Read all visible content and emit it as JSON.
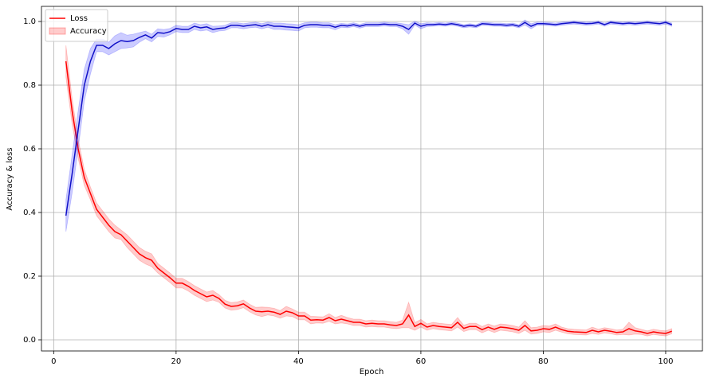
{
  "chart_data": {
    "type": "line",
    "xlabel": "Epoch",
    "ylabel": "Accuracy & loss",
    "xlim": [
      -2,
      106
    ],
    "ylim": [
      -0.035,
      1.0475
    ],
    "xticks": [
      0,
      20,
      40,
      60,
      80,
      100
    ],
    "yticks": [
      {
        "value": 0,
        "label": "0.0"
      },
      0.2,
      0.4,
      0.6,
      0.8,
      {
        "value": 1,
        "label": "1.0"
      }
    ],
    "grid": true,
    "legend": "upper left",
    "x": [
      2,
      3,
      4,
      5,
      6,
      7,
      8,
      9,
      10,
      11,
      12,
      13,
      14,
      15,
      16,
      17,
      18,
      19,
      20,
      21,
      22,
      23,
      24,
      25,
      26,
      27,
      28,
      29,
      30,
      31,
      32,
      33,
      34,
      35,
      36,
      37,
      38,
      39,
      40,
      41,
      42,
      43,
      44,
      45,
      46,
      47,
      48,
      49,
      50,
      51,
      52,
      53,
      54,
      55,
      56,
      57,
      58,
      59,
      60,
      61,
      62,
      63,
      64,
      65,
      66,
      67,
      68,
      69,
      70,
      71,
      72,
      73,
      74,
      75,
      76,
      77,
      78,
      79,
      80,
      81,
      82,
      83,
      84,
      85,
      86,
      87,
      88,
      89,
      90,
      91,
      92,
      93,
      94,
      95,
      96,
      97,
      98,
      99,
      100,
      101
    ],
    "series": [
      {
        "name": "Loss",
        "color": "#ff0000",
        "band_color": "rgba(255,0,0,0.2)",
        "legend_marker": "line",
        "legend_color": "#ff0000",
        "values": [
          0.875,
          0.72,
          0.6,
          0.51,
          0.46,
          0.41,
          0.385,
          0.36,
          0.34,
          0.33,
          0.31,
          0.29,
          0.27,
          0.258,
          0.25,
          0.225,
          0.21,
          0.195,
          0.178,
          0.178,
          0.168,
          0.155,
          0.145,
          0.135,
          0.14,
          0.13,
          0.112,
          0.105,
          0.107,
          0.113,
          0.1,
          0.09,
          0.088,
          0.09,
          0.087,
          0.08,
          0.09,
          0.085,
          0.075,
          0.075,
          0.062,
          0.063,
          0.062,
          0.07,
          0.06,
          0.065,
          0.06,
          0.055,
          0.055,
          0.05,
          0.052,
          0.05,
          0.05,
          0.047,
          0.045,
          0.05,
          0.078,
          0.042,
          0.052,
          0.04,
          0.045,
          0.042,
          0.04,
          0.038,
          0.055,
          0.036,
          0.042,
          0.042,
          0.032,
          0.04,
          0.033,
          0.04,
          0.038,
          0.035,
          0.03,
          0.045,
          0.028,
          0.03,
          0.035,
          0.033,
          0.04,
          0.032,
          0.027,
          0.025,
          0.024,
          0.023,
          0.03,
          0.025,
          0.03,
          0.027,
          0.023,
          0.025,
          0.035,
          0.028,
          0.025,
          0.02,
          0.025,
          0.022,
          0.02,
          0.027
        ],
        "band": [
          0.05,
          0.04,
          0.03,
          0.025,
          0.02,
          0.02,
          0.02,
          0.02,
          0.02,
          0.015,
          0.02,
          0.02,
          0.02,
          0.02,
          0.02,
          0.015,
          0.015,
          0.015,
          0.015,
          0.015,
          0.015,
          0.015,
          0.015,
          0.015,
          0.015,
          0.012,
          0.012,
          0.012,
          0.012,
          0.012,
          0.012,
          0.012,
          0.015,
          0.012,
          0.012,
          0.012,
          0.015,
          0.012,
          0.012,
          0.012,
          0.012,
          0.01,
          0.01,
          0.012,
          0.01,
          0.012,
          0.01,
          0.01,
          0.01,
          0.01,
          0.01,
          0.01,
          0.01,
          0.01,
          0.01,
          0.012,
          0.04,
          0.012,
          0.012,
          0.01,
          0.01,
          0.01,
          0.01,
          0.01,
          0.015,
          0.01,
          0.01,
          0.01,
          0.01,
          0.01,
          0.01,
          0.01,
          0.01,
          0.01,
          0.01,
          0.015,
          0.01,
          0.01,
          0.01,
          0.01,
          0.01,
          0.008,
          0.008,
          0.008,
          0.008,
          0.008,
          0.01,
          0.008,
          0.008,
          0.008,
          0.008,
          0.008,
          0.02,
          0.01,
          0.008,
          0.008,
          0.008,
          0.008,
          0.008,
          0.008
        ]
      },
      {
        "name": "Accuracy",
        "color": "#1010c8",
        "band_color": "rgba(0,0,255,0.2)",
        "legend_marker": "patch",
        "legend_color": "#ff0000",
        "values": [
          0.39,
          0.52,
          0.66,
          0.8,
          0.875,
          0.925,
          0.925,
          0.915,
          0.93,
          0.94,
          0.937,
          0.94,
          0.95,
          0.958,
          0.948,
          0.965,
          0.963,
          0.968,
          0.978,
          0.975,
          0.975,
          0.985,
          0.98,
          0.983,
          0.975,
          0.978,
          0.98,
          0.988,
          0.988,
          0.985,
          0.988,
          0.99,
          0.985,
          0.99,
          0.985,
          0.985,
          0.983,
          0.982,
          0.98,
          0.988,
          0.99,
          0.99,
          0.988,
          0.988,
          0.982,
          0.988,
          0.986,
          0.99,
          0.985,
          0.99,
          0.99,
          0.99,
          0.992,
          0.99,
          0.99,
          0.985,
          0.975,
          0.995,
          0.985,
          0.99,
          0.99,
          0.992,
          0.99,
          0.993,
          0.99,
          0.985,
          0.988,
          0.985,
          0.993,
          0.992,
          0.99,
          0.99,
          0.988,
          0.99,
          0.985,
          0.997,
          0.985,
          0.993,
          0.993,
          0.992,
          0.99,
          0.993,
          0.995,
          0.997,
          0.995,
          0.993,
          0.994,
          0.997,
          0.99,
          0.997,
          0.995,
          0.993,
          0.995,
          0.993,
          0.995,
          0.997,
          0.995,
          0.993,
          0.997,
          0.99
        ],
        "band": [
          0.05,
          0.06,
          0.06,
          0.05,
          0.04,
          0.02,
          0.02,
          0.02,
          0.025,
          0.025,
          0.02,
          0.02,
          0.015,
          0.012,
          0.012,
          0.012,
          0.012,
          0.01,
          0.01,
          0.01,
          0.01,
          0.01,
          0.01,
          0.01,
          0.01,
          0.008,
          0.008,
          0.008,
          0.008,
          0.008,
          0.008,
          0.008,
          0.008,
          0.008,
          0.01,
          0.01,
          0.01,
          0.01,
          0.01,
          0.008,
          0.008,
          0.008,
          0.008,
          0.008,
          0.008,
          0.006,
          0.006,
          0.006,
          0.006,
          0.006,
          0.006,
          0.006,
          0.006,
          0.006,
          0.006,
          0.008,
          0.015,
          0.006,
          0.008,
          0.006,
          0.005,
          0.005,
          0.005,
          0.005,
          0.005,
          0.005,
          0.005,
          0.005,
          0.005,
          0.005,
          0.005,
          0.005,
          0.005,
          0.005,
          0.005,
          0.008,
          0.008,
          0.005,
          0.005,
          0.005,
          0.005,
          0.005,
          0.005,
          0.005,
          0.005,
          0.005,
          0.005,
          0.005,
          0.005,
          0.005,
          0.005,
          0.005,
          0.005,
          0.005,
          0.005,
          0.005,
          0.005,
          0.005,
          0.005,
          0.005
        ]
      }
    ]
  }
}
